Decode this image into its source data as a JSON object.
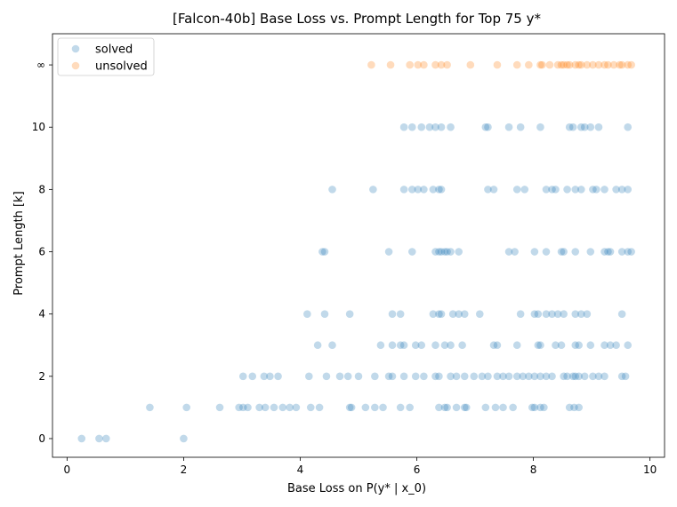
{
  "chart_data": {
    "type": "scatter",
    "title": "[Falcon-40b] Base Loss vs. Prompt Length for Top 75 y*",
    "xlabel": "Base Loss on P(y* | x_0)",
    "ylabel": "Prompt Length [k]",
    "xlim": [
      -0.25,
      10.25
    ],
    "ylim": [
      -0.6,
      13.0
    ],
    "xticks": [
      0,
      2,
      4,
      6,
      8,
      10
    ],
    "xtick_labels": [
      "0",
      "2",
      "4",
      "6",
      "8",
      "10"
    ],
    "yticks": [
      0,
      2,
      4,
      6,
      8,
      10,
      12
    ],
    "ytick_labels": [
      "0",
      "2",
      "4",
      "6",
      "8",
      "10",
      "∞"
    ],
    "grid": false,
    "legend_position": "top-left",
    "series": [
      {
        "name": "solved",
        "color": "#1f77b4",
        "points": [
          [
            0.25,
            0
          ],
          [
            0.55,
            0
          ],
          [
            0.67,
            0
          ],
          [
            2.0,
            0
          ],
          [
            1.42,
            1
          ],
          [
            2.05,
            1
          ],
          [
            2.62,
            1
          ],
          [
            2.95,
            1
          ],
          [
            3.02,
            1
          ],
          [
            3.1,
            1
          ],
          [
            3.3,
            1
          ],
          [
            3.4,
            1
          ],
          [
            3.55,
            1
          ],
          [
            3.7,
            1
          ],
          [
            3.82,
            1
          ],
          [
            3.93,
            1
          ],
          [
            4.18,
            1
          ],
          [
            4.33,
            1
          ],
          [
            4.85,
            1
          ],
          [
            4.88,
            1
          ],
          [
            5.12,
            1
          ],
          [
            5.28,
            1
          ],
          [
            5.42,
            1
          ],
          [
            5.72,
            1
          ],
          [
            5.88,
            1
          ],
          [
            6.38,
            1
          ],
          [
            6.48,
            1
          ],
          [
            6.52,
            1
          ],
          [
            6.68,
            1
          ],
          [
            6.82,
            1
          ],
          [
            6.85,
            1
          ],
          [
            7.18,
            1
          ],
          [
            7.35,
            1
          ],
          [
            7.48,
            1
          ],
          [
            7.65,
            1
          ],
          [
            7.98,
            1
          ],
          [
            8.02,
            1
          ],
          [
            8.12,
            1
          ],
          [
            8.18,
            1
          ],
          [
            8.62,
            1
          ],
          [
            8.7,
            1
          ],
          [
            8.78,
            1
          ],
          [
            3.02,
            2
          ],
          [
            3.18,
            2
          ],
          [
            3.38,
            2
          ],
          [
            3.48,
            2
          ],
          [
            3.62,
            2
          ],
          [
            4.15,
            2
          ],
          [
            4.45,
            2
          ],
          [
            4.68,
            2
          ],
          [
            4.82,
            2
          ],
          [
            5.0,
            2
          ],
          [
            5.28,
            2
          ],
          [
            5.52,
            2
          ],
          [
            5.58,
            2
          ],
          [
            5.78,
            2
          ],
          [
            5.98,
            2
          ],
          [
            6.12,
            2
          ],
          [
            6.32,
            2
          ],
          [
            6.38,
            2
          ],
          [
            6.58,
            2
          ],
          [
            6.68,
            2
          ],
          [
            6.82,
            2
          ],
          [
            6.98,
            2
          ],
          [
            7.12,
            2
          ],
          [
            7.22,
            2
          ],
          [
            7.38,
            2
          ],
          [
            7.48,
            2
          ],
          [
            7.58,
            2
          ],
          [
            7.72,
            2
          ],
          [
            7.82,
            2
          ],
          [
            7.92,
            2
          ],
          [
            8.02,
            2
          ],
          [
            8.12,
            2
          ],
          [
            8.22,
            2
          ],
          [
            8.32,
            2
          ],
          [
            8.52,
            2
          ],
          [
            8.58,
            2
          ],
          [
            8.68,
            2
          ],
          [
            8.72,
            2
          ],
          [
            8.78,
            2
          ],
          [
            8.88,
            2
          ],
          [
            9.02,
            2
          ],
          [
            9.12,
            2
          ],
          [
            9.22,
            2
          ],
          [
            9.52,
            2
          ],
          [
            9.58,
            2
          ],
          [
            4.3,
            3
          ],
          [
            4.55,
            3
          ],
          [
            5.38,
            3
          ],
          [
            5.58,
            3
          ],
          [
            5.72,
            3
          ],
          [
            5.78,
            3
          ],
          [
            5.98,
            3
          ],
          [
            6.08,
            3
          ],
          [
            6.32,
            3
          ],
          [
            6.48,
            3
          ],
          [
            6.58,
            3
          ],
          [
            6.78,
            3
          ],
          [
            7.32,
            3
          ],
          [
            7.38,
            3
          ],
          [
            7.72,
            3
          ],
          [
            8.08,
            3
          ],
          [
            8.12,
            3
          ],
          [
            8.38,
            3
          ],
          [
            8.48,
            3
          ],
          [
            8.72,
            3
          ],
          [
            8.78,
            3
          ],
          [
            8.98,
            3
          ],
          [
            9.22,
            3
          ],
          [
            9.32,
            3
          ],
          [
            9.42,
            3
          ],
          [
            9.62,
            3
          ],
          [
            4.12,
            4
          ],
          [
            4.42,
            4
          ],
          [
            4.85,
            4
          ],
          [
            5.58,
            4
          ],
          [
            5.72,
            4
          ],
          [
            6.28,
            4
          ],
          [
            6.38,
            4
          ],
          [
            6.42,
            4
          ],
          [
            6.62,
            4
          ],
          [
            6.72,
            4
          ],
          [
            6.82,
            4
          ],
          [
            7.08,
            4
          ],
          [
            7.78,
            4
          ],
          [
            8.02,
            4
          ],
          [
            8.08,
            4
          ],
          [
            8.22,
            4
          ],
          [
            8.32,
            4
          ],
          [
            8.42,
            4
          ],
          [
            8.52,
            4
          ],
          [
            8.72,
            4
          ],
          [
            8.82,
            4
          ],
          [
            8.92,
            4
          ],
          [
            9.52,
            4
          ],
          [
            4.38,
            6
          ],
          [
            4.42,
            6
          ],
          [
            5.52,
            6
          ],
          [
            5.92,
            6
          ],
          [
            6.32,
            6
          ],
          [
            6.38,
            6
          ],
          [
            6.42,
            6
          ],
          [
            6.48,
            6
          ],
          [
            6.52,
            6
          ],
          [
            6.58,
            6
          ],
          [
            6.72,
            6
          ],
          [
            7.58,
            6
          ],
          [
            7.68,
            6
          ],
          [
            8.02,
            6
          ],
          [
            8.22,
            6
          ],
          [
            8.48,
            6
          ],
          [
            8.52,
            6
          ],
          [
            8.72,
            6
          ],
          [
            8.98,
            6
          ],
          [
            9.22,
            6
          ],
          [
            9.28,
            6
          ],
          [
            9.32,
            6
          ],
          [
            9.52,
            6
          ],
          [
            9.62,
            6
          ],
          [
            9.68,
            6
          ],
          [
            4.55,
            8
          ],
          [
            5.25,
            8
          ],
          [
            5.78,
            8
          ],
          [
            5.92,
            8
          ],
          [
            6.02,
            8
          ],
          [
            6.12,
            8
          ],
          [
            6.28,
            8
          ],
          [
            6.38,
            8
          ],
          [
            6.42,
            8
          ],
          [
            7.22,
            8
          ],
          [
            7.32,
            8
          ],
          [
            7.72,
            8
          ],
          [
            7.85,
            8
          ],
          [
            8.22,
            8
          ],
          [
            8.32,
            8
          ],
          [
            8.38,
            8
          ],
          [
            8.58,
            8
          ],
          [
            8.72,
            8
          ],
          [
            8.82,
            8
          ],
          [
            9.02,
            8
          ],
          [
            9.08,
            8
          ],
          [
            9.22,
            8
          ],
          [
            9.42,
            8
          ],
          [
            9.52,
            8
          ],
          [
            9.62,
            8
          ],
          [
            5.78,
            10
          ],
          [
            5.92,
            10
          ],
          [
            6.08,
            10
          ],
          [
            6.22,
            10
          ],
          [
            6.32,
            10
          ],
          [
            6.42,
            10
          ],
          [
            6.58,
            10
          ],
          [
            7.18,
            10
          ],
          [
            7.22,
            10
          ],
          [
            7.58,
            10
          ],
          [
            7.78,
            10
          ],
          [
            8.12,
            10
          ],
          [
            8.62,
            10
          ],
          [
            8.68,
            10
          ],
          [
            8.82,
            10
          ],
          [
            8.88,
            10
          ],
          [
            8.98,
            10
          ],
          [
            9.12,
            10
          ],
          [
            9.62,
            10
          ]
        ]
      },
      {
        "name": "unsolved",
        "color": "#ff7f0e",
        "points": [
          [
            5.22,
            12
          ],
          [
            5.55,
            12
          ],
          [
            5.88,
            12
          ],
          [
            6.02,
            12
          ],
          [
            6.12,
            12
          ],
          [
            6.32,
            12
          ],
          [
            6.42,
            12
          ],
          [
            6.52,
            12
          ],
          [
            6.92,
            12
          ],
          [
            7.38,
            12
          ],
          [
            7.72,
            12
          ],
          [
            7.92,
            12
          ],
          [
            8.12,
            12
          ],
          [
            8.15,
            12
          ],
          [
            8.28,
            12
          ],
          [
            8.42,
            12
          ],
          [
            8.48,
            12
          ],
          [
            8.52,
            12
          ],
          [
            8.58,
            12
          ],
          [
            8.62,
            12
          ],
          [
            8.72,
            12
          ],
          [
            8.78,
            12
          ],
          [
            8.82,
            12
          ],
          [
            8.92,
            12
          ],
          [
            9.02,
            12
          ],
          [
            9.12,
            12
          ],
          [
            9.22,
            12
          ],
          [
            9.28,
            12
          ],
          [
            9.38,
            12
          ],
          [
            9.48,
            12
          ],
          [
            9.52,
            12
          ],
          [
            9.62,
            12
          ],
          [
            9.68,
            12
          ]
        ]
      }
    ]
  }
}
